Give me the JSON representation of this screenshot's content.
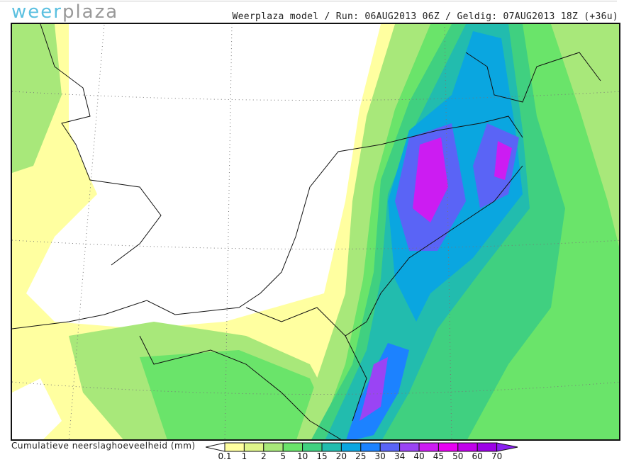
{
  "header": {
    "logo": {
      "part1": "weer",
      "part2": "plaza"
    },
    "run_info": "Weerplaza model / Run: 06AUG2013 06Z / Geldig: 07AUG2013 18Z (+36u)"
  },
  "map": {
    "type": "precipitation-map",
    "region": "Benelux / North Sea"
  },
  "legend": {
    "title": "Cumulatieve neerslaghoeveelheid (mm)",
    "ticks": [
      "0.1",
      "1",
      "2",
      "5",
      "10",
      "15",
      "20",
      "25",
      "30",
      "34",
      "40",
      "45",
      "50",
      "60",
      "70"
    ],
    "colors": [
      "#ffffa0",
      "#dff58a",
      "#a8e87a",
      "#6ae46a",
      "#40d080",
      "#22bcae",
      "#0aa6e0",
      "#1c82ff",
      "#5a64f6",
      "#9a44f4",
      "#cc1cf2",
      "#e800f2",
      "#c000ea",
      "#9c00e6"
    ],
    "below_color": "#ffffff",
    "above_color": "#8a20f0"
  }
}
